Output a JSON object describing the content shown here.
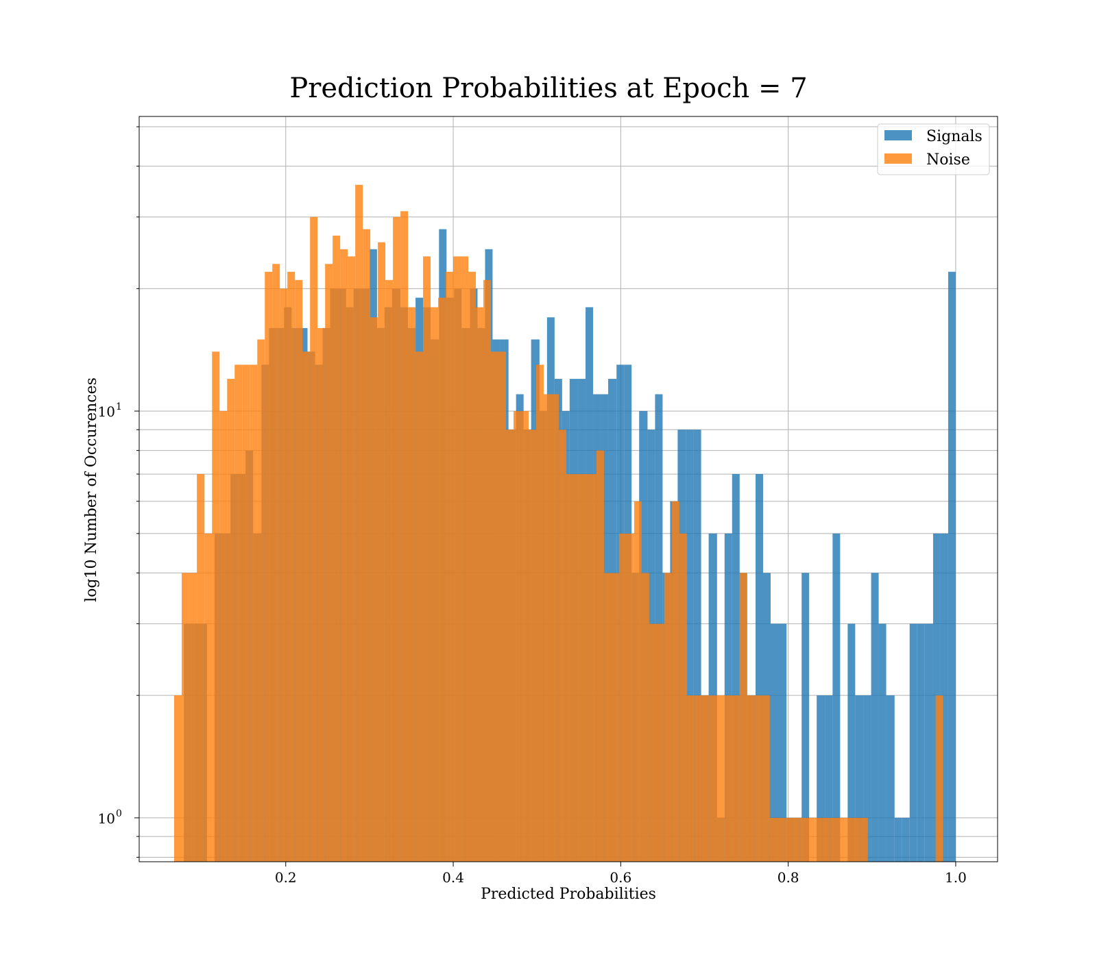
{
  "chart_data": {
    "type": "bar",
    "title": "Prediction Probabilities at Epoch = 7",
    "xlabel": "Predicted Probabilities",
    "ylabel": "log10 Number of Occurences",
    "xlim": [
      0.025,
      1.05
    ],
    "ylim": [
      0.78,
      53
    ],
    "yscale": "log",
    "grid": true,
    "legend_position": "top-right",
    "xticks": [
      {
        "value": 0.2,
        "label": "0.2"
      },
      {
        "value": 0.4,
        "label": "0.4"
      },
      {
        "value": 0.6,
        "label": "0.6"
      },
      {
        "value": 0.8,
        "label": "0.8"
      },
      {
        "value": 1.0,
        "label": "1.0"
      }
    ],
    "yticks": [
      {
        "value": 1,
        "label": "10",
        "exponent": "0"
      },
      {
        "value": 10,
        "label": "10",
        "exponent": "1"
      }
    ],
    "series": [
      {
        "name": "Signals",
        "color": "#1f77b4",
        "opacity": 0.8,
        "bins": [
          [
            0.0784,
            0.0876,
            3
          ],
          [
            0.0876,
            0.0968,
            3
          ],
          [
            0.0968,
            0.106,
            3
          ],
          [
            0.115,
            0.124,
            5
          ],
          [
            0.124,
            0.134,
            5
          ],
          [
            0.134,
            0.143,
            7
          ],
          [
            0.143,
            0.152,
            7
          ],
          [
            0.152,
            0.161,
            8
          ],
          [
            0.161,
            0.171,
            5
          ],
          [
            0.171,
            0.18,
            13
          ],
          [
            0.18,
            0.189,
            16
          ],
          [
            0.189,
            0.198,
            16
          ],
          [
            0.198,
            0.207,
            18
          ],
          [
            0.207,
            0.217,
            16
          ],
          [
            0.217,
            0.226,
            16
          ],
          [
            0.226,
            0.235,
            14
          ],
          [
            0.235,
            0.244,
            13
          ],
          [
            0.244,
            0.253,
            16
          ],
          [
            0.253,
            0.263,
            20
          ],
          [
            0.263,
            0.272,
            20
          ],
          [
            0.272,
            0.281,
            18
          ],
          [
            0.281,
            0.29,
            20
          ],
          [
            0.29,
            0.3,
            20
          ],
          [
            0.3,
            0.309,
            25
          ],
          [
            0.309,
            0.318,
            16
          ],
          [
            0.318,
            0.327,
            18
          ],
          [
            0.327,
            0.337,
            20
          ],
          [
            0.337,
            0.346,
            18
          ],
          [
            0.346,
            0.355,
            16
          ],
          [
            0.355,
            0.364,
            19
          ],
          [
            0.364,
            0.373,
            18
          ],
          [
            0.373,
            0.383,
            15
          ],
          [
            0.383,
            0.392,
            28
          ],
          [
            0.392,
            0.401,
            19
          ],
          [
            0.401,
            0.41,
            20
          ],
          [
            0.41,
            0.42,
            16
          ],
          [
            0.42,
            0.429,
            20
          ],
          [
            0.429,
            0.438,
            16
          ],
          [
            0.438,
            0.447,
            25
          ],
          [
            0.447,
            0.456,
            15
          ],
          [
            0.456,
            0.466,
            15
          ],
          [
            0.466,
            0.475,
            9
          ],
          [
            0.475,
            0.484,
            11
          ],
          [
            0.484,
            0.493,
            9
          ],
          [
            0.493,
            0.503,
            15
          ],
          [
            0.503,
            0.512,
            10
          ],
          [
            0.512,
            0.521,
            17
          ],
          [
            0.521,
            0.53,
            12
          ],
          [
            0.53,
            0.539,
            10
          ],
          [
            0.539,
            0.549,
            12
          ],
          [
            0.549,
            0.558,
            12
          ],
          [
            0.558,
            0.567,
            18
          ],
          [
            0.567,
            0.576,
            11
          ],
          [
            0.576,
            0.585,
            11
          ],
          [
            0.585,
            0.595,
            12
          ],
          [
            0.595,
            0.604,
            13
          ],
          [
            0.604,
            0.613,
            13
          ],
          [
            0.613,
            0.622,
            4
          ],
          [
            0.622,
            0.632,
            10
          ],
          [
            0.632,
            0.641,
            9
          ],
          [
            0.641,
            0.65,
            11
          ],
          [
            0.65,
            0.659,
            4
          ],
          [
            0.659,
            0.668,
            6
          ],
          [
            0.668,
            0.678,
            9
          ],
          [
            0.678,
            0.687,
            9
          ],
          [
            0.687,
            0.696,
            9
          ],
          [
            0.696,
            0.705,
            2
          ],
          [
            0.705,
            0.715,
            5
          ],
          [
            0.715,
            0.724,
            1
          ],
          [
            0.724,
            0.733,
            5
          ],
          [
            0.733,
            0.742,
            7
          ],
          [
            0.742,
            0.751,
            4
          ],
          [
            0.751,
            0.761,
            2
          ],
          [
            0.761,
            0.77,
            7
          ],
          [
            0.77,
            0.779,
            4
          ],
          [
            0.779,
            0.788,
            3
          ],
          [
            0.788,
            0.798,
            3
          ],
          [
            0.798,
            0.807,
            1
          ],
          [
            0.807,
            0.816,
            1
          ],
          [
            0.816,
            0.825,
            4
          ],
          [
            0.834,
            0.844,
            2
          ],
          [
            0.844,
            0.853,
            2
          ],
          [
            0.853,
            0.862,
            5
          ],
          [
            0.871,
            0.88,
            3
          ],
          [
            0.88,
            0.89,
            2
          ],
          [
            0.89,
            0.899,
            2
          ],
          [
            0.899,
            0.908,
            4
          ],
          [
            0.908,
            0.917,
            3
          ],
          [
            0.917,
            0.927,
            2
          ],
          [
            0.927,
            0.936,
            1
          ],
          [
            0.936,
            0.945,
            1
          ],
          [
            0.945,
            0.954,
            3
          ],
          [
            0.954,
            0.963,
            3
          ],
          [
            0.963,
            0.973,
            3
          ],
          [
            0.973,
            0.982,
            5
          ],
          [
            0.982,
            0.991,
            5
          ],
          [
            0.991,
            1.0,
            22
          ]
        ]
      },
      {
        "name": "Noise",
        "color": "#ff7f0e",
        "opacity": 0.8,
        "bins": [
          [
            0.0667,
            0.0758,
            2
          ],
          [
            0.0758,
            0.0848,
            4
          ],
          [
            0.0848,
            0.0939,
            4
          ],
          [
            0.0939,
            0.103,
            7
          ],
          [
            0.103,
            0.112,
            5
          ],
          [
            0.112,
            0.121,
            14
          ],
          [
            0.121,
            0.13,
            10
          ],
          [
            0.13,
            0.139,
            12
          ],
          [
            0.139,
            0.148,
            13
          ],
          [
            0.148,
            0.157,
            13
          ],
          [
            0.157,
            0.166,
            13
          ],
          [
            0.166,
            0.175,
            15
          ],
          [
            0.175,
            0.184,
            22
          ],
          [
            0.184,
            0.193,
            23
          ],
          [
            0.193,
            0.202,
            20
          ],
          [
            0.202,
            0.211,
            22
          ],
          [
            0.211,
            0.22,
            21
          ],
          [
            0.22,
            0.229,
            14
          ],
          [
            0.229,
            0.238,
            30
          ],
          [
            0.238,
            0.247,
            16
          ],
          [
            0.247,
            0.256,
            23
          ],
          [
            0.256,
            0.265,
            27
          ],
          [
            0.265,
            0.274,
            25
          ],
          [
            0.274,
            0.283,
            24
          ],
          [
            0.283,
            0.292,
            36
          ],
          [
            0.292,
            0.301,
            28
          ],
          [
            0.301,
            0.31,
            17
          ],
          [
            0.31,
            0.319,
            26
          ],
          [
            0.319,
            0.328,
            21
          ],
          [
            0.328,
            0.337,
            30
          ],
          [
            0.337,
            0.346,
            31
          ],
          [
            0.346,
            0.355,
            18
          ],
          [
            0.355,
            0.364,
            14
          ],
          [
            0.364,
            0.373,
            24
          ],
          [
            0.373,
            0.382,
            18
          ],
          [
            0.382,
            0.391,
            19
          ],
          [
            0.391,
            0.4,
            22
          ],
          [
            0.4,
            0.409,
            24
          ],
          [
            0.409,
            0.418,
            24
          ],
          [
            0.418,
            0.427,
            22
          ],
          [
            0.427,
            0.436,
            18
          ],
          [
            0.436,
            0.445,
            21
          ],
          [
            0.445,
            0.454,
            14
          ],
          [
            0.454,
            0.463,
            14
          ],
          [
            0.463,
            0.472,
            9
          ],
          [
            0.472,
            0.481,
            10
          ],
          [
            0.481,
            0.49,
            10
          ],
          [
            0.49,
            0.499,
            9
          ],
          [
            0.499,
            0.508,
            13
          ],
          [
            0.508,
            0.517,
            11
          ],
          [
            0.517,
            0.526,
            11
          ],
          [
            0.526,
            0.535,
            9
          ],
          [
            0.535,
            0.544,
            7
          ],
          [
            0.544,
            0.553,
            7
          ],
          [
            0.553,
            0.562,
            7
          ],
          [
            0.562,
            0.571,
            7
          ],
          [
            0.571,
            0.58,
            8
          ],
          [
            0.58,
            0.589,
            4
          ],
          [
            0.589,
            0.598,
            4
          ],
          [
            0.598,
            0.607,
            5
          ],
          [
            0.607,
            0.616,
            5
          ],
          [
            0.616,
            0.625,
            6
          ],
          [
            0.625,
            0.634,
            4
          ],
          [
            0.634,
            0.643,
            3
          ],
          [
            0.643,
            0.652,
            3
          ],
          [
            0.652,
            0.661,
            4
          ],
          [
            0.661,
            0.67,
            6
          ],
          [
            0.67,
            0.679,
            5
          ],
          [
            0.679,
            0.688,
            2
          ],
          [
            0.688,
            0.697,
            2
          ],
          [
            0.697,
            0.706,
            2
          ],
          [
            0.706,
            0.715,
            2
          ],
          [
            0.715,
            0.724,
            2
          ],
          [
            0.724,
            0.733,
            2
          ],
          [
            0.733,
            0.742,
            2
          ],
          [
            0.742,
            0.751,
            4
          ],
          [
            0.751,
            0.76,
            2
          ],
          [
            0.76,
            0.769,
            2
          ],
          [
            0.769,
            0.778,
            2
          ],
          [
            0.778,
            0.787,
            1
          ],
          [
            0.787,
            0.796,
            1
          ],
          [
            0.796,
            0.805,
            1
          ],
          [
            0.805,
            0.814,
            1
          ],
          [
            0.814,
            0.823,
            1
          ],
          [
            0.823,
            0.832,
            1
          ],
          [
            0.832,
            0.841,
            1
          ],
          [
            0.841,
            0.85,
            1
          ],
          [
            0.85,
            0.859,
            1
          ],
          [
            0.859,
            0.868,
            1
          ],
          [
            0.868,
            0.877,
            1
          ],
          [
            0.877,
            0.886,
            1
          ],
          [
            0.886,
            0.895,
            1
          ],
          [
            0.976,
            0.985,
            2
          ]
        ]
      }
    ]
  }
}
